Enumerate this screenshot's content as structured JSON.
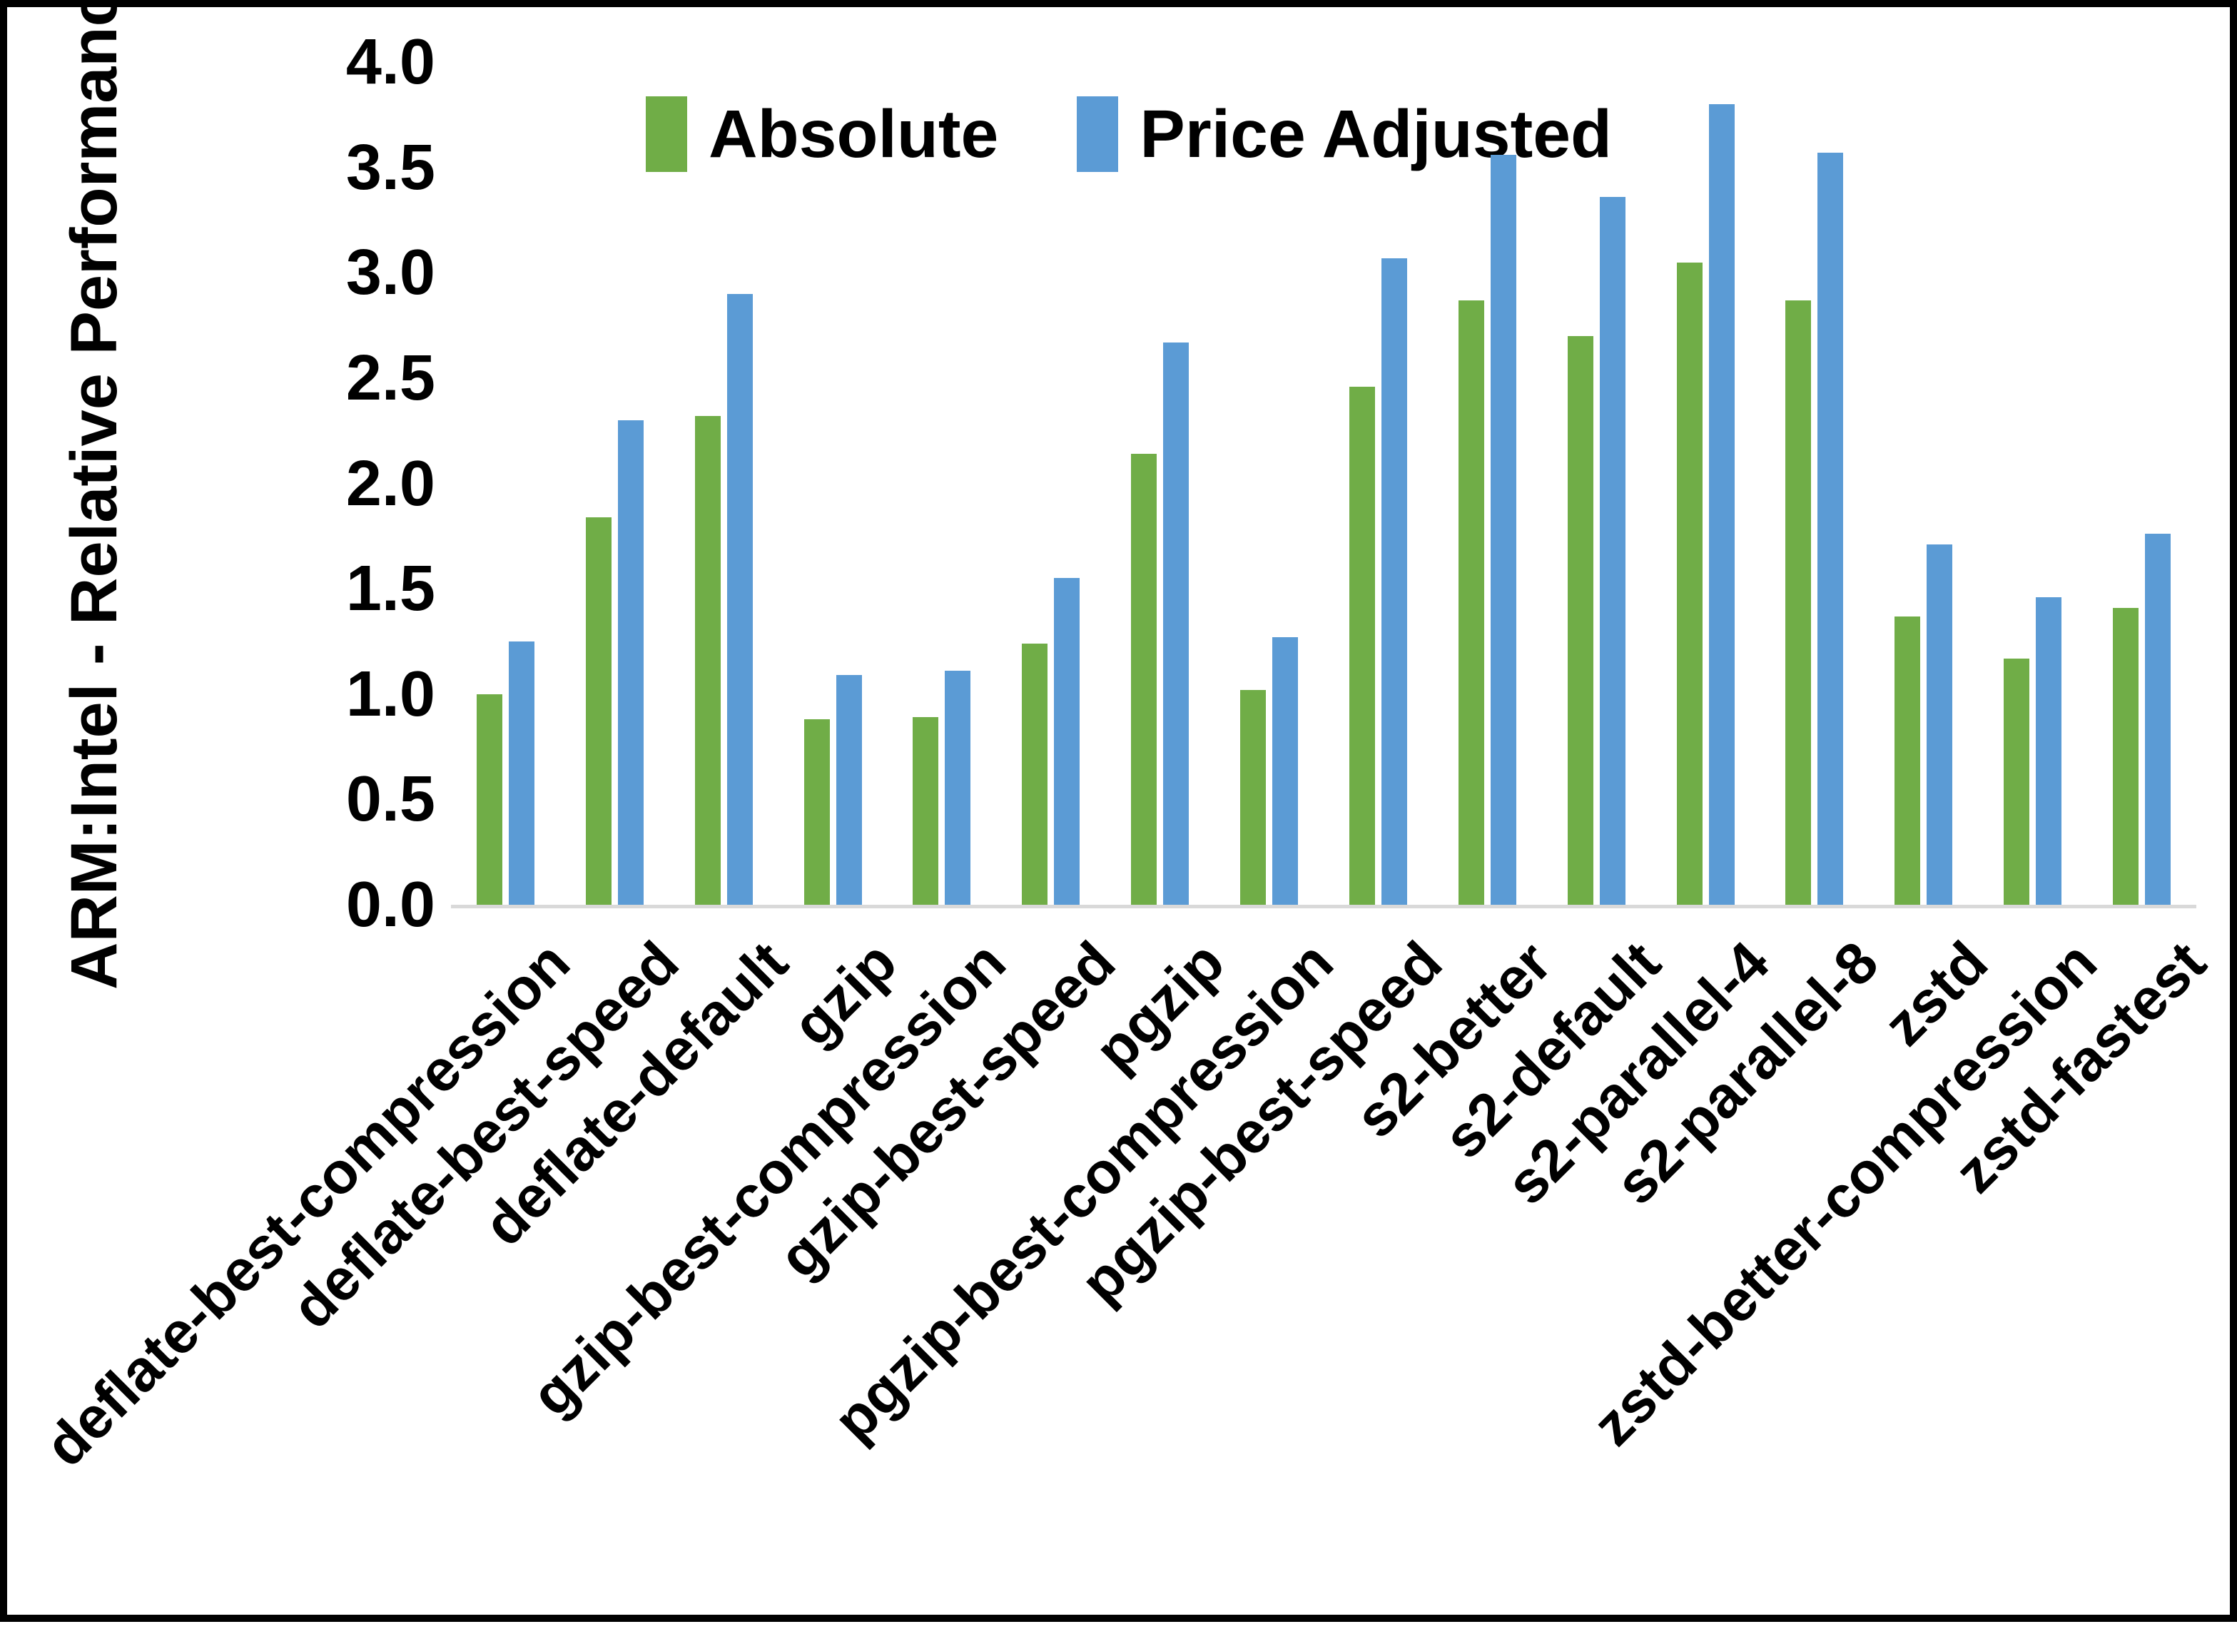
{
  "chart_data": {
    "type": "bar",
    "title": "",
    "xlabel": "",
    "ylabel": "ARM:Intel - Relative Performance",
    "ylim": [
      0.0,
      4.0
    ],
    "ytick_labels": [
      "0.0",
      "0.5",
      "1.0",
      "1.5",
      "2.0",
      "2.5",
      "3.0",
      "3.5",
      "4.0"
    ],
    "grid": false,
    "legend_position": "top-center",
    "axis_line_color": "#d9d9d9",
    "categories": [
      "deflate-best-compression",
      "deflate-best-speed",
      "deflate-default",
      "gzip",
      "gzip-best-compression",
      "gzip-best-speed",
      "pgzip",
      "pgzip-best-compression",
      "pgzip-best-speed",
      "s2-better",
      "s2-default",
      "s2-parallel-4",
      "s2-parallel-8",
      "zstd",
      "zstd-better-compression",
      "zstd-fastest"
    ],
    "series": [
      {
        "name": "Absolute",
        "color": "#70AD47",
        "values": [
          1.0,
          1.84,
          2.32,
          0.88,
          0.89,
          1.24,
          2.14,
          1.02,
          2.46,
          2.87,
          2.7,
          3.05,
          2.87,
          1.37,
          1.17,
          1.41
        ]
      },
      {
        "name": "Price Adjusted",
        "color": "#5B9BD5",
        "values": [
          1.25,
          2.3,
          2.9,
          1.09,
          1.11,
          1.55,
          2.67,
          1.27,
          3.07,
          3.56,
          3.36,
          3.8,
          3.57,
          1.71,
          1.46,
          1.76
        ]
      }
    ]
  }
}
